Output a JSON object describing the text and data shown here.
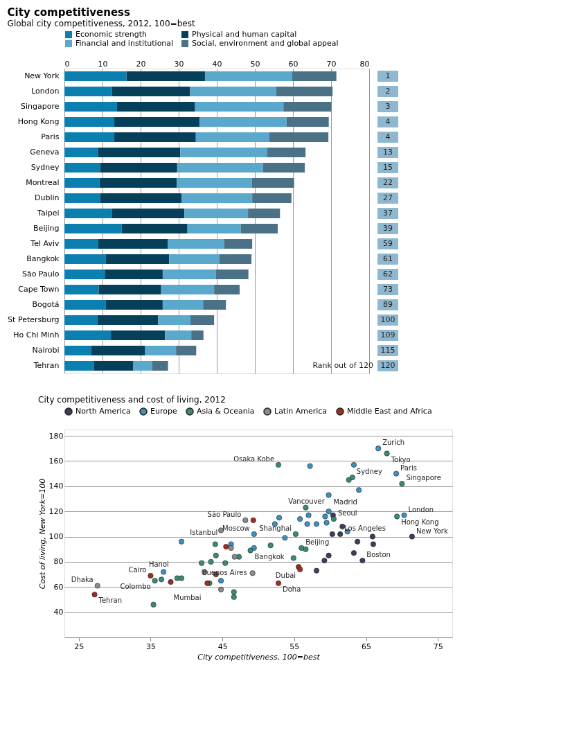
{
  "chart_data": [
    {
      "type": "bar",
      "orientation": "horizontal",
      "stacked": true,
      "title": "City competitiveness",
      "subtitle": "Global city competitiveness, 2012, 100=best",
      "categories": [
        "New York",
        "London",
        "Singapore",
        "Hong Kong",
        "Paris",
        "Geneva",
        "Sydney",
        "Montreal",
        "Dublin",
        "Taipei",
        "Beijing",
        "Tel Aviv",
        "Bangkok",
        "São Paulo",
        "Cape Town",
        "Bogotá",
        "St Petersburg",
        "Ho Chi Minh",
        "Nairobi",
        "Tehran"
      ],
      "series": [
        {
          "name": "Economic strength",
          "color": "#0a7fb0",
          "values": [
            16.3,
            12.5,
            13.8,
            13.1,
            13.1,
            8.8,
            9.4,
            9.2,
            9.4,
            12.5,
            15.0,
            8.9,
            10.8,
            10.6,
            9.0,
            10.8,
            8.7,
            12.2,
            7.0,
            7.7
          ]
        },
        {
          "name": "Physical and human capital",
          "color": "#063f5a",
          "values": [
            20.6,
            20.5,
            20.5,
            22.4,
            21.4,
            21.6,
            20.2,
            20.3,
            21.4,
            19.0,
            17.3,
            18.2,
            16.7,
            15.2,
            16.4,
            15.0,
            15.9,
            14.2,
            14.2,
            10.4
          ]
        },
        {
          "name": "Financial and institutional",
          "color": "#5aa8cc",
          "values": [
            22.9,
            22.6,
            23.2,
            22.8,
            19.3,
            22.8,
            22.5,
            19.7,
            18.5,
            16.7,
            14.0,
            14.8,
            13.2,
            14.0,
            13.9,
            10.6,
            8.5,
            6.9,
            8.1,
            4.9
          ]
        },
        {
          "name": "Social, environment and global appeal",
          "color": "#4a7186",
          "values": [
            11.6,
            14.8,
            12.6,
            11.1,
            15.5,
            10.1,
            11.0,
            11.1,
            10.3,
            8.4,
            9.7,
            7.4,
            8.4,
            8.5,
            6.7,
            6.0,
            6.2,
            3.2,
            5.3,
            4.2
          ]
        }
      ],
      "xlim": [
        0,
        80
      ],
      "xticks": [
        0,
        10,
        20,
        30,
        40,
        50,
        60,
        70,
        80
      ],
      "grid": "x",
      "legend": "top",
      "annotations": [
        "Rank out of 120",
        "1",
        "2",
        "3",
        "4",
        "4",
        "13",
        "15",
        "22",
        "27",
        "37",
        "39",
        "59",
        "61",
        "62",
        "73",
        "89",
        "100",
        "109",
        "115",
        "120"
      ]
    },
    {
      "type": "scatter",
      "title": "City competitiveness and cost of living, 2012",
      "xlabel": "City competitiveness, 100=best",
      "ylabel": "Cost of living, New York=100",
      "xlim": [
        23,
        77
      ],
      "xticks": [
        25,
        35,
        45,
        55,
        65,
        75
      ],
      "ylim": [
        20,
        185
      ],
      "yticks": [
        40,
        60,
        80,
        100,
        120,
        140,
        160,
        180
      ],
      "grid": "y",
      "legend": "top",
      "marker": "circle",
      "series": [
        {
          "name": "North America",
          "color": "#3b3f5c",
          "x": [
            60.3,
            61.7,
            61.4,
            63.8,
            65.9,
            66.0,
            71.4,
            63.3,
            64.5,
            59.8,
            59.2,
            58.1,
            60.4
          ],
          "values": [
            102,
            108,
            102,
            96,
            100,
            94,
            100,
            87,
            81,
            85,
            81,
            73,
            117
          ]
        },
        {
          "name": "Europe",
          "color": "#3f8fc0",
          "x": [
            66.7,
            57.2,
            63.3,
            64.0,
            69.2,
            59.8,
            59.8,
            57.0,
            59.3,
            70.3,
            52.9,
            52.3,
            55.8,
            56.8,
            58.1,
            59.5,
            39.3,
            46.2,
            49.4,
            49.4,
            53.7,
            62.4,
            44.8,
            36.8
          ],
          "values": [
            170,
            156,
            157,
            137,
            150,
            133,
            120,
            117,
            116,
            117,
            115,
            110,
            114,
            110,
            110,
            111,
            96,
            94,
            91,
            102,
            99,
            104,
            65,
            72
          ]
        },
        {
          "name": "Asia & Oceania",
          "color": "#3a8a78",
          "x": [
            67.9,
            52.8,
            62.6,
            63.1,
            70.0,
            56.6,
            60.5,
            69.3,
            44.0,
            48.9,
            51.7,
            55.2,
            56.0,
            56.6,
            54.9,
            42.1,
            43.4,
            44.1,
            45.4,
            47.3,
            43.2,
            46.6,
            46.6,
            35.6,
            36.5,
            38.7,
            39.3,
            35.4
          ],
          "values": [
            166,
            157,
            145,
            147,
            142,
            123,
            114,
            116,
            94,
            89,
            93,
            102,
            91,
            90,
            83,
            79,
            80,
            85,
            79,
            84,
            63,
            56,
            52,
            65,
            66,
            67,
            67,
            46
          ]
        },
        {
          "name": "Latin America",
          "color": "#8c8a8c",
          "x": [
            48.2,
            44.8,
            46.2,
            46.7,
            49.2,
            42.5,
            44.8,
            27.6
          ],
          "values": [
            113,
            105,
            91,
            84,
            71,
            72,
            58,
            61
          ]
        },
        {
          "name": "Middle East and Africa",
          "color": "#9e2f20",
          "x": [
            49.3,
            45.5,
            55.6,
            55.8,
            52.8,
            44.1,
            42.9,
            35.0,
            37.8,
            27.2
          ],
          "values": [
            113,
            92,
            76,
            74,
            63,
            70,
            63,
            69,
            64,
            54
          ]
        }
      ],
      "annotations": [
        {
          "text": "Zurich",
          "x": 66.7,
          "y": 170
        },
        {
          "text": "Tokyo",
          "x": 67.9,
          "y": 166
        },
        {
          "text": "Osaka Kobe",
          "x": 52.8,
          "y": 157
        },
        {
          "text": "Paris",
          "x": 69.2,
          "y": 150
        },
        {
          "text": "Singapore",
          "x": 70.0,
          "y": 142
        },
        {
          "text": "Sydney",
          "x": 63.1,
          "y": 147
        },
        {
          "text": "Shanghai",
          "x": 55.2,
          "y": 102
        },
        {
          "text": "Madrid",
          "x": 59.3,
          "y": 116
        },
        {
          "text": "Seoul",
          "x": 60.5,
          "y": 114
        },
        {
          "text": "Vancouver",
          "x": 60.4,
          "y": 117
        },
        {
          "text": "Hong Kong",
          "x": 69.3,
          "y": 116
        },
        {
          "text": "London",
          "x": 70.3,
          "y": 117
        },
        {
          "text": "São Paulo",
          "x": 48.2,
          "y": 113
        },
        {
          "text": "Moscow",
          "x": 49.4,
          "y": 102
        },
        {
          "text": "Istanbul",
          "x": 45.5,
          "y": 92
        },
        {
          "text": "Bangkok",
          "x": 48.9,
          "y": 89
        },
        {
          "text": "Beijing",
          "x": 56.0,
          "y": 91
        },
        {
          "text": "New York",
          "x": 71.4,
          "y": 100
        },
        {
          "text": "Los Angeles",
          "x": 61.4,
          "y": 102
        },
        {
          "text": "Boston",
          "x": 64.5,
          "y": 81
        },
        {
          "text": "Dubai",
          "x": 55.8,
          "y": 74
        },
        {
          "text": "Doha",
          "x": 52.8,
          "y": 63
        },
        {
          "text": "Buenos Aires",
          "x": 49.2,
          "y": 71
        },
        {
          "text": "Mumbai",
          "x": 43.2,
          "y": 63
        },
        {
          "text": "Hanoi",
          "x": 38.7,
          "y": 67
        },
        {
          "text": "Colombo",
          "x": 35.6,
          "y": 65
        },
        {
          "text": "Cairo",
          "x": 35.0,
          "y": 69
        },
        {
          "text": "Dhaka",
          "x": 27.6,
          "y": 61
        },
        {
          "text": "Tehran",
          "x": 27.2,
          "y": 54
        }
      ]
    }
  ]
}
